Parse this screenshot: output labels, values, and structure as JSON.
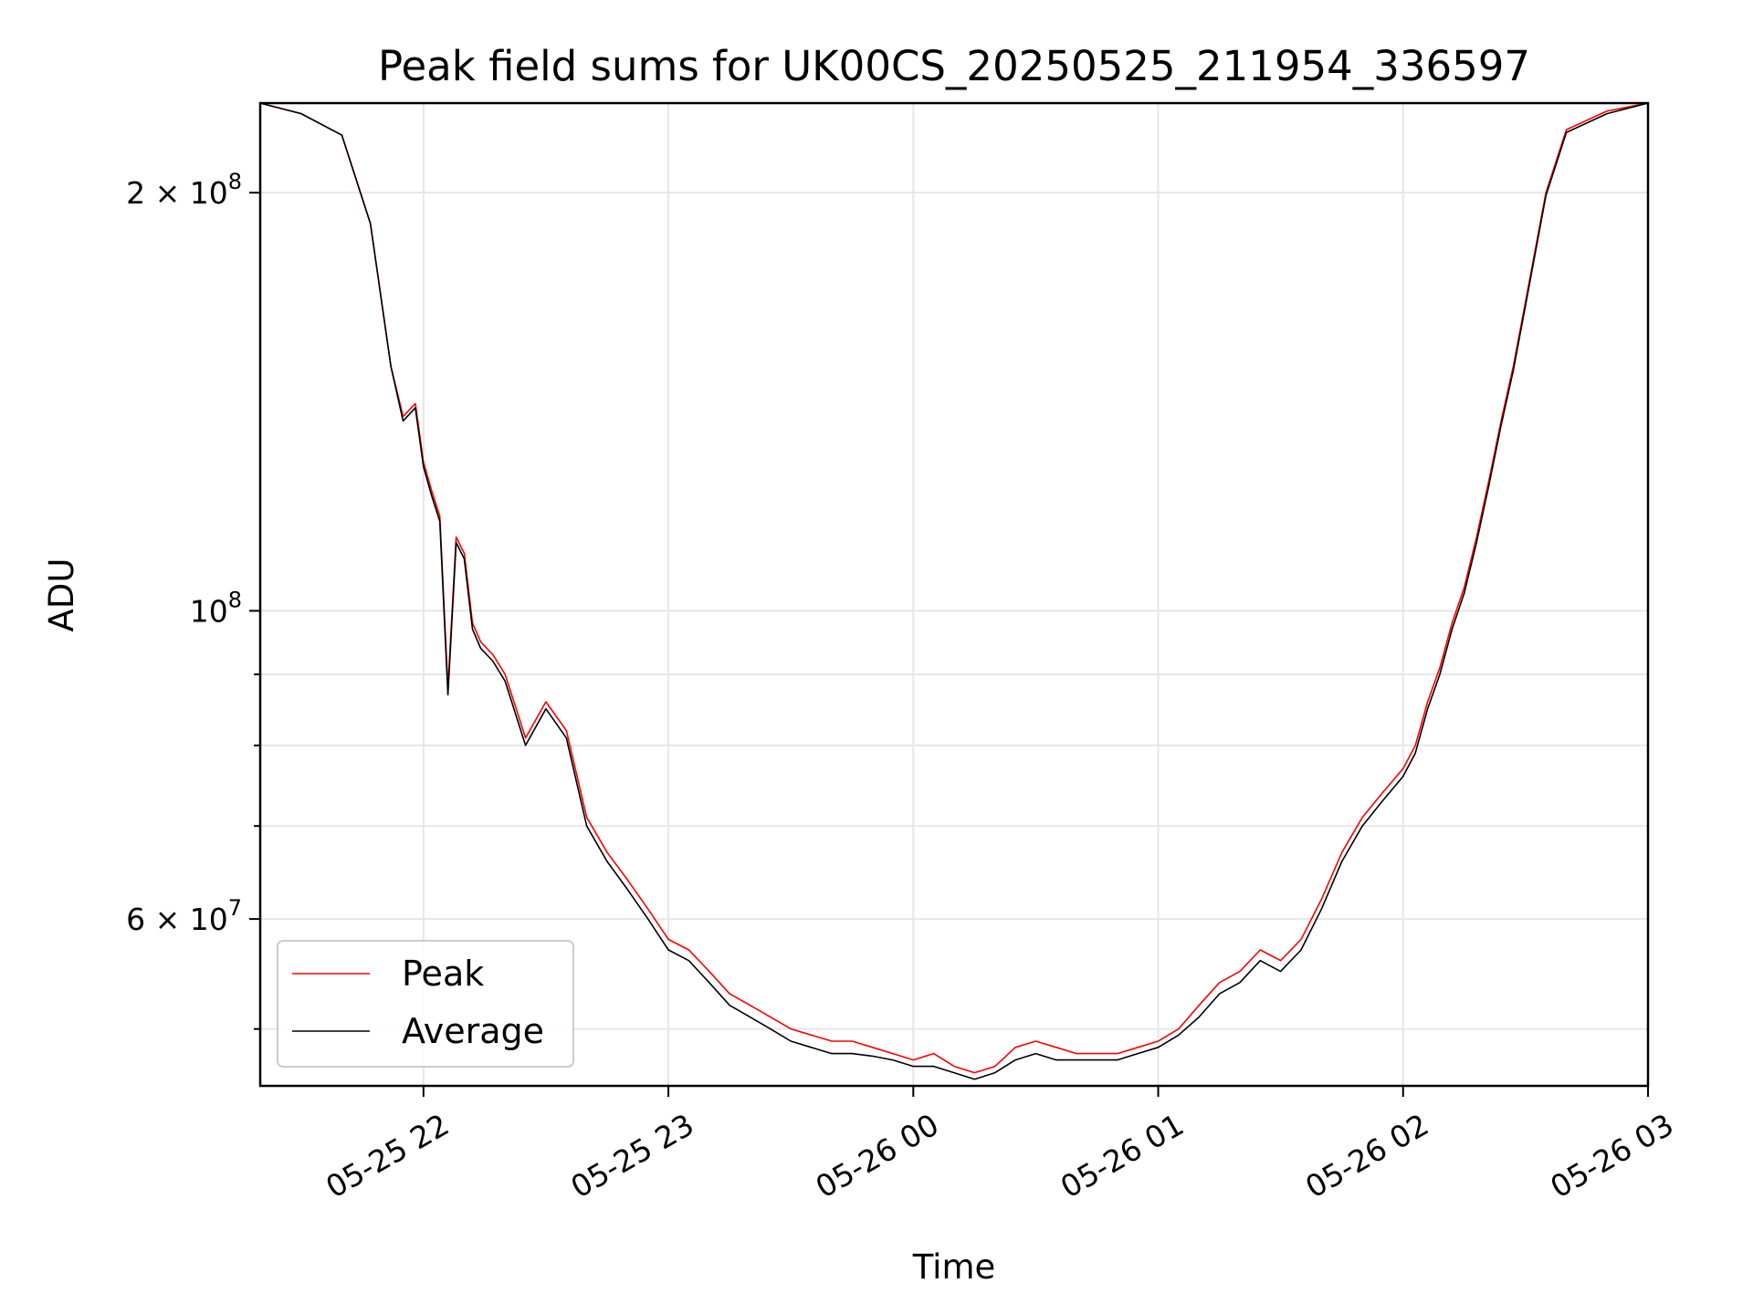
{
  "chart_data": {
    "type": "line",
    "title": "Peak field sums for UK00CS_20250525_211954_336597",
    "xlabel": "Time",
    "ylabel": "ADU",
    "xscale": "time",
    "yscale": "log",
    "xlim": [
      "2025-05-25 21:20",
      "2025-05-26 03:00"
    ],
    "ylim": [
      45500000,
      232000000
    ],
    "grid": true,
    "legend_position": "lower-left",
    "x_ticks": [
      {
        "value": "2025-05-25 22:00",
        "label": "05-25 22"
      },
      {
        "value": "2025-05-25 23:00",
        "label": "05-25 23"
      },
      {
        "value": "2025-05-26 00:00",
        "label": "05-26 00"
      },
      {
        "value": "2025-05-26 01:00",
        "label": "05-26 01"
      },
      {
        "value": "2025-05-26 02:00",
        "label": "05-26 02"
      },
      {
        "value": "2025-05-26 03:00",
        "label": "05-26 03"
      }
    ],
    "y_major_ticks": [
      {
        "value": 60000000,
        "label": "6 × 10^7",
        "mantissa": "6 × 10",
        "exp": "7"
      },
      {
        "value": 100000000,
        "label": "10^8",
        "mantissa": "10",
        "exp": "8"
      },
      {
        "value": 200000000,
        "label": "2 × 10^8",
        "mantissa": "2 × 10",
        "exp": "8"
      }
    ],
    "y_minor_ticks": [
      50000000,
      70000000,
      80000000,
      90000000
    ],
    "series": [
      {
        "name": "Peak",
        "color": "#ff0000",
        "x": [
          "2025-05-25 21:20",
          "2025-05-25 21:30",
          "2025-05-25 21:40",
          "2025-05-25 21:47",
          "2025-05-25 21:52",
          "2025-05-25 21:55",
          "2025-05-25 21:58",
          "2025-05-25 22:00",
          "2025-05-25 22:02",
          "2025-05-25 22:04",
          "2025-05-25 22:06",
          "2025-05-25 22:08",
          "2025-05-25 22:10",
          "2025-05-25 22:12",
          "2025-05-25 22:14",
          "2025-05-25 22:17",
          "2025-05-25 22:20",
          "2025-05-25 22:25",
          "2025-05-25 22:30",
          "2025-05-25 22:35",
          "2025-05-25 22:40",
          "2025-05-25 22:45",
          "2025-05-25 22:50",
          "2025-05-25 22:55",
          "2025-05-25 23:00",
          "2025-05-25 23:05",
          "2025-05-25 23:10",
          "2025-05-25 23:15",
          "2025-05-25 23:20",
          "2025-05-25 23:25",
          "2025-05-25 23:30",
          "2025-05-25 23:35",
          "2025-05-25 23:40",
          "2025-05-25 23:45",
          "2025-05-25 23:50",
          "2025-05-25 23:55",
          "2025-05-26 00:00",
          "2025-05-26 00:05",
          "2025-05-26 00:10",
          "2025-05-26 00:15",
          "2025-05-26 00:20",
          "2025-05-26 00:25",
          "2025-05-26 00:30",
          "2025-05-26 00:35",
          "2025-05-26 00:40",
          "2025-05-26 00:45",
          "2025-05-26 00:50",
          "2025-05-26 00:55",
          "2025-05-26 01:00",
          "2025-05-26 01:05",
          "2025-05-26 01:10",
          "2025-05-26 01:15",
          "2025-05-26 01:20",
          "2025-05-26 01:25",
          "2025-05-26 01:30",
          "2025-05-26 01:35",
          "2025-05-26 01:40",
          "2025-05-26 01:45",
          "2025-05-26 01:50",
          "2025-05-26 01:55",
          "2025-05-26 02:00",
          "2025-05-26 02:03",
          "2025-05-26 02:06",
          "2025-05-26 02:09",
          "2025-05-26 02:12",
          "2025-05-26 02:15",
          "2025-05-26 02:18",
          "2025-05-26 02:21",
          "2025-05-26 02:24",
          "2025-05-26 02:27",
          "2025-05-26 02:30",
          "2025-05-26 02:35",
          "2025-05-26 02:40",
          "2025-05-26 02:50",
          "2025-05-26 03:00"
        ],
        "values": [
          232000000,
          228000000,
          220000000,
          190000000,
          150000000,
          138000000,
          141000000,
          128000000,
          122000000,
          117000000,
          88000000,
          113000000,
          110000000,
          98000000,
          95000000,
          93000000,
          90000000,
          81000000,
          86000000,
          82000000,
          71000000,
          67000000,
          64000000,
          61000000,
          58000000,
          57000000,
          55000000,
          53000000,
          52000000,
          51000000,
          50000000,
          49500000,
          49000000,
          49000000,
          48500000,
          48000000,
          47500000,
          48000000,
          47000000,
          46500000,
          47000000,
          48500000,
          49000000,
          48500000,
          48000000,
          48000000,
          48000000,
          48500000,
          49000000,
          50000000,
          52000000,
          54000000,
          55000000,
          57000000,
          56000000,
          58000000,
          62000000,
          67000000,
          71000000,
          74000000,
          77000000,
          80000000,
          86000000,
          91000000,
          98000000,
          104000000,
          113000000,
          124000000,
          137000000,
          150000000,
          167000000,
          200000000,
          222000000,
          229000000,
          232000000
        ]
      },
      {
        "name": "Average",
        "color": "#000000",
        "x": [
          "2025-05-25 21:20",
          "2025-05-25 21:30",
          "2025-05-25 21:40",
          "2025-05-25 21:47",
          "2025-05-25 21:52",
          "2025-05-25 21:55",
          "2025-05-25 21:58",
          "2025-05-25 22:00",
          "2025-05-25 22:02",
          "2025-05-25 22:04",
          "2025-05-25 22:06",
          "2025-05-25 22:08",
          "2025-05-25 22:10",
          "2025-05-25 22:12",
          "2025-05-25 22:14",
          "2025-05-25 22:17",
          "2025-05-25 22:20",
          "2025-05-25 22:25",
          "2025-05-25 22:30",
          "2025-05-25 22:35",
          "2025-05-25 22:40",
          "2025-05-25 22:45",
          "2025-05-25 22:50",
          "2025-05-25 22:55",
          "2025-05-25 23:00",
          "2025-05-25 23:05",
          "2025-05-25 23:10",
          "2025-05-25 23:15",
          "2025-05-25 23:20",
          "2025-05-25 23:25",
          "2025-05-25 23:30",
          "2025-05-25 23:35",
          "2025-05-25 23:40",
          "2025-05-25 23:45",
          "2025-05-25 23:50",
          "2025-05-25 23:55",
          "2025-05-26 00:00",
          "2025-05-26 00:05",
          "2025-05-26 00:10",
          "2025-05-26 00:15",
          "2025-05-26 00:20",
          "2025-05-26 00:25",
          "2025-05-26 00:30",
          "2025-05-26 00:35",
          "2025-05-26 00:40",
          "2025-05-26 00:45",
          "2025-05-26 00:50",
          "2025-05-26 00:55",
          "2025-05-26 01:00",
          "2025-05-26 01:05",
          "2025-05-26 01:10",
          "2025-05-26 01:15",
          "2025-05-26 01:20",
          "2025-05-26 01:25",
          "2025-05-26 01:30",
          "2025-05-26 01:35",
          "2025-05-26 01:40",
          "2025-05-26 01:45",
          "2025-05-26 01:50",
          "2025-05-26 01:55",
          "2025-05-26 02:00",
          "2025-05-26 02:03",
          "2025-05-26 02:06",
          "2025-05-26 02:09",
          "2025-05-26 02:12",
          "2025-05-26 02:15",
          "2025-05-26 02:18",
          "2025-05-26 02:21",
          "2025-05-26 02:24",
          "2025-05-26 02:27",
          "2025-05-26 02:30",
          "2025-05-26 02:35",
          "2025-05-26 02:40",
          "2025-05-26 02:50",
          "2025-05-26 03:00"
        ],
        "values": [
          232000000,
          228000000,
          220000000,
          190000000,
          150000000,
          137000000,
          140000000,
          127000000,
          121000000,
          116000000,
          87000000,
          112000000,
          109000000,
          97000000,
          94000000,
          92000000,
          89000000,
          80000000,
          85000000,
          81000000,
          70000000,
          66000000,
          63000000,
          60000000,
          57000000,
          56000000,
          54000000,
          52000000,
          51000000,
          50000000,
          49000000,
          48500000,
          48000000,
          48000000,
          47800000,
          47500000,
          47000000,
          47000000,
          46500000,
          46000000,
          46500000,
          47500000,
          48000000,
          47500000,
          47500000,
          47500000,
          47500000,
          48000000,
          48500000,
          49500000,
          51000000,
          53000000,
          54000000,
          56000000,
          55000000,
          57000000,
          61000000,
          66000000,
          70000000,
          73000000,
          76000000,
          79000000,
          85000000,
          90000000,
          97000000,
          103000000,
          112000000,
          123000000,
          136000000,
          149000000,
          166000000,
          199000000,
          221000000,
          228000000,
          232000000
        ]
      }
    ]
  }
}
